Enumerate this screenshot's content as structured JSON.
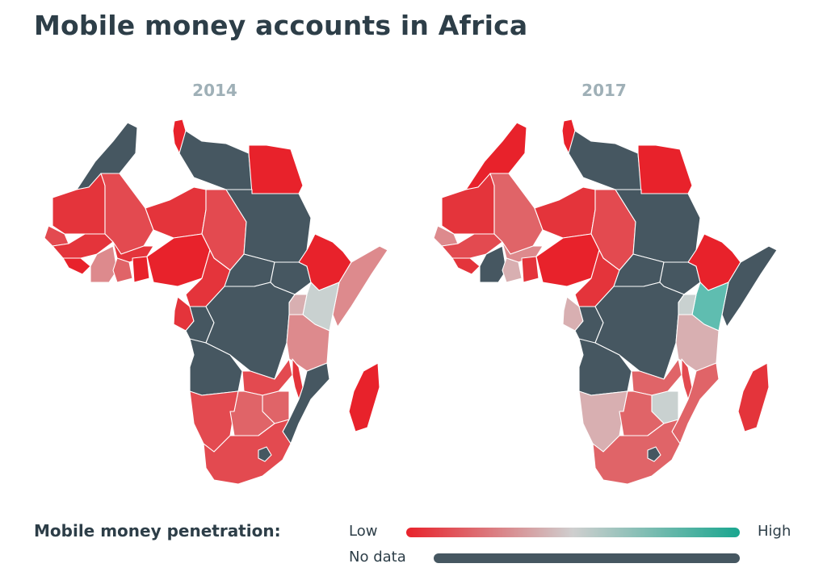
{
  "title": "Mobile money accounts in Africa",
  "maps": [
    {
      "year": "2014",
      "regions": [
        {
          "name": "maghreb-west",
          "c": "dark"
        },
        {
          "name": "tunisia",
          "c": "c1"
        },
        {
          "name": "libya",
          "c": "dark"
        },
        {
          "name": "egypt",
          "c": "c1"
        },
        {
          "name": "mauritania",
          "c": "c2"
        },
        {
          "name": "mali",
          "c": "c3"
        },
        {
          "name": "niger",
          "c": "c2"
        },
        {
          "name": "chad",
          "c": "c3"
        },
        {
          "name": "sudan",
          "c": "dark"
        },
        {
          "name": "senegal",
          "c": "c3"
        },
        {
          "name": "guinea",
          "c": "c2"
        },
        {
          "name": "sierra-leone",
          "c": "c1"
        },
        {
          "name": "ivory-coast",
          "c": "c5"
        },
        {
          "name": "burkina-faso",
          "c": "c2"
        },
        {
          "name": "ghana",
          "c": "c4"
        },
        {
          "name": "togo-benin",
          "c": "c1"
        },
        {
          "name": "nigeria",
          "c": "c1"
        },
        {
          "name": "cameroon",
          "c": "c2"
        },
        {
          "name": "central-african-republic",
          "c": "dark"
        },
        {
          "name": "south-sudan",
          "c": "dark"
        },
        {
          "name": "ethiopia",
          "c": "c1"
        },
        {
          "name": "somalia",
          "c": "c5"
        },
        {
          "name": "kenya",
          "c": "c7"
        },
        {
          "name": "uganda",
          "c": "c6"
        },
        {
          "name": "gabon",
          "c": "c2"
        },
        {
          "name": "congo",
          "c": "dark"
        },
        {
          "name": "dr-congo",
          "c": "dark"
        },
        {
          "name": "tanzania",
          "c": "c5"
        },
        {
          "name": "angola",
          "c": "dark"
        },
        {
          "name": "zambia",
          "c": "c3"
        },
        {
          "name": "malawi",
          "c": "c2"
        },
        {
          "name": "mozambique",
          "c": "dark"
        },
        {
          "name": "zimbabwe",
          "c": "c4"
        },
        {
          "name": "namibia",
          "c": "c3"
        },
        {
          "name": "botswana",
          "c": "c4"
        },
        {
          "name": "south-africa",
          "c": "c3"
        },
        {
          "name": "lesotho",
          "c": "dark"
        },
        {
          "name": "madagascar",
          "c": "c1"
        }
      ]
    },
    {
      "year": "2017",
      "regions": [
        {
          "name": "maghreb-west",
          "c": "c1"
        },
        {
          "name": "tunisia",
          "c": "c1"
        },
        {
          "name": "libya",
          "c": "dark"
        },
        {
          "name": "egypt",
          "c": "c1"
        },
        {
          "name": "mauritania",
          "c": "c2"
        },
        {
          "name": "mali",
          "c": "c4"
        },
        {
          "name": "niger",
          "c": "c2"
        },
        {
          "name": "chad",
          "c": "c3"
        },
        {
          "name": "sudan",
          "c": "dark"
        },
        {
          "name": "senegal",
          "c": "c5"
        },
        {
          "name": "guinea",
          "c": "c3"
        },
        {
          "name": "sierra-leone",
          "c": "c2"
        },
        {
          "name": "ivory-coast",
          "c": "dark"
        },
        {
          "name": "burkina-faso",
          "c": "c5"
        },
        {
          "name": "ghana",
          "c": "c6"
        },
        {
          "name": "togo-benin",
          "c": "c2"
        },
        {
          "name": "nigeria",
          "c": "c1"
        },
        {
          "name": "cameroon",
          "c": "c2"
        },
        {
          "name": "central-african-republic",
          "c": "dark"
        },
        {
          "name": "south-sudan",
          "c": "dark"
        },
        {
          "name": "ethiopia",
          "c": "c1"
        },
        {
          "name": "somalia",
          "c": "dark"
        },
        {
          "name": "kenya",
          "c": "c8"
        },
        {
          "name": "uganda",
          "c": "c7"
        },
        {
          "name": "gabon",
          "c": "c6"
        },
        {
          "name": "congo",
          "c": "dark"
        },
        {
          "name": "dr-congo",
          "c": "dark"
        },
        {
          "name": "tanzania",
          "c": "c6"
        },
        {
          "name": "angola",
          "c": "dark"
        },
        {
          "name": "zambia",
          "c": "c4"
        },
        {
          "name": "malawi",
          "c": "c3"
        },
        {
          "name": "mozambique",
          "c": "c4"
        },
        {
          "name": "zimbabwe",
          "c": "c7"
        },
        {
          "name": "namibia",
          "c": "c6"
        },
        {
          "name": "botswana",
          "c": "c4"
        },
        {
          "name": "south-africa",
          "c": "c4"
        },
        {
          "name": "lesotho",
          "c": "dark"
        },
        {
          "name": "madagascar",
          "c": "c2"
        }
      ]
    }
  ],
  "palette": {
    "dark": "#465761",
    "c1": "#e8222b",
    "c2": "#e4343b",
    "c3": "#e34a50",
    "c4": "#e06468",
    "c5": "#dd8a8d",
    "c6": "#d8afb1",
    "c7": "#c9d1d0",
    "c8": "#5fbdb0"
  },
  "legend": {
    "title": "Mobile money penetration:",
    "low_label": "Low",
    "high_label": "High",
    "no_data_label": "No data",
    "gradient_colors": [
      "#e8222b",
      "#cfcfcf",
      "#1aa68f"
    ],
    "no_data_color": "#465761"
  }
}
